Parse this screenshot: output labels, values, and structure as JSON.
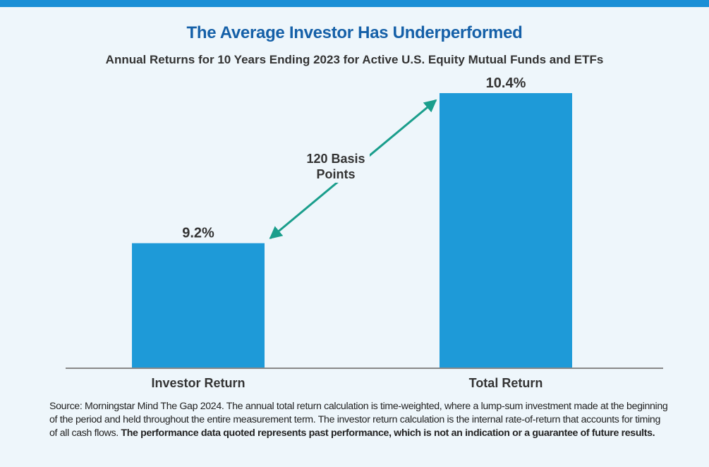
{
  "colors": {
    "accent": "#1a8fd6",
    "bar": "#1e9ad8",
    "title": "#1560a8",
    "arrow": "#1a9e8c",
    "axis": "#888888"
  },
  "chart_data": {
    "type": "bar",
    "title": "The Average Investor Has Underperformed",
    "subtitle": "Annual Returns for 10 Years Ending 2023 for Active U.S. Equity Mutual Funds and ETFs",
    "categories": [
      "Investor Return",
      "Total Return"
    ],
    "values": [
      9.2,
      10.4
    ],
    "value_labels": [
      "9.2%",
      "10.4%"
    ],
    "ylim": [
      8.2,
      10.4
    ],
    "xlabel": "",
    "ylabel": "",
    "grid": false,
    "annotation": {
      "line1": "120 Basis",
      "line2": "Points"
    }
  },
  "source": {
    "text": "Source: Morningstar Mind The Gap 2024. The annual total return calculation is time-weighted, where a lump-sum investment made at the beginning of the period and held throughout the entire measurement term. The investor return calculation is the internal rate-of-return that accounts for timing of all cash flows. ",
    "bold": "The performance data quoted represents past performance, which is not an indication or a guarantee of future results."
  }
}
